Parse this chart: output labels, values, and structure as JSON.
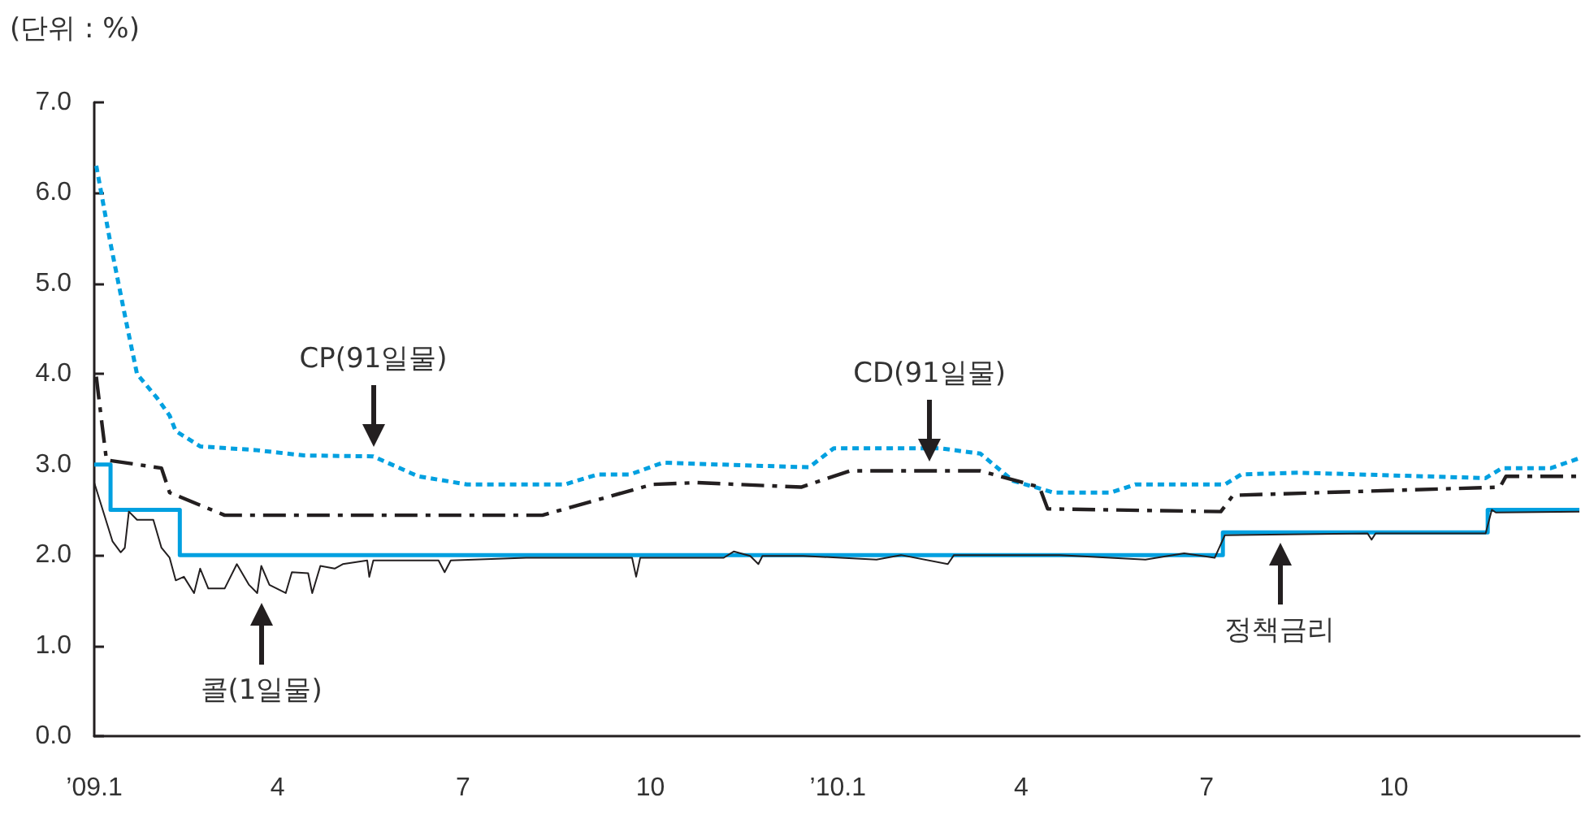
{
  "chart_data": {
    "type": "line",
    "ylabel": "(단위 : %)",
    "xlim": [
      "2009-01-01",
      "2010-12-31"
    ],
    "xticks": [
      {
        "value": "2009-01-01",
        "label": "’09.1"
      },
      {
        "value": "2009-04-01",
        "label": "4"
      },
      {
        "value": "2009-07-01",
        "label": "7"
      },
      {
        "value": "2009-10-01",
        "label": "10"
      },
      {
        "value": "2010-01-01",
        "label": "’10.1"
      },
      {
        "value": "2010-04-01",
        "label": "4"
      },
      {
        "value": "2010-07-01",
        "label": "7"
      },
      {
        "value": "2010-10-01",
        "label": "10"
      }
    ],
    "ylim": [
      0,
      7
    ],
    "yticks": [
      {
        "value": 0,
        "label": "0.0"
      },
      {
        "value": 1,
        "label": "1.0"
      },
      {
        "value": 2,
        "label": "2.0"
      },
      {
        "value": 3,
        "label": "3.0"
      },
      {
        "value": 4,
        "label": "4.0"
      },
      {
        "value": 5,
        "label": "5.0"
      },
      {
        "value": 6,
        "label": "6.0"
      },
      {
        "value": 7,
        "label": "7.0"
      }
    ],
    "grid": false,
    "marker": "none",
    "series": [
      {
        "color": "#00a0e0",
        "line_style": "dotted",
        "x": [
          "2009-01-02",
          "2009-01-09",
          "2009-01-17",
          "2009-01-22",
          "2009-02-01",
          "2009-02-07",
          "2009-02-10",
          "2009-02-22",
          "2009-03-21",
          "2009-04-14",
          "2009-05-18",
          "2009-06-09",
          "2009-07-03",
          "2009-08-20",
          "2009-09-05",
          "2009-09-21",
          "2009-10-07",
          "2009-12-02",
          "2009-12-18",
          "2009-12-30",
          "2010-02-20",
          "2010-03-12",
          "2010-03-28",
          "2010-04-17",
          "2010-05-15",
          "2010-05-27",
          "2010-07-10",
          "2010-07-18",
          "2010-08-15",
          "2010-11-15",
          "2010-11-23",
          "2010-12-17",
          "2010-12-31"
        ],
        "values": [
          6.3,
          5.44,
          4.54,
          4.0,
          3.73,
          3.54,
          3.37,
          3.2,
          3.16,
          3.1,
          3.09,
          2.87,
          2.78,
          2.78,
          2.89,
          2.89,
          3.02,
          2.98,
          2.97,
          3.18,
          3.18,
          3.12,
          2.82,
          2.69,
          2.69,
          2.78,
          2.78,
          2.89,
          2.91,
          2.85,
          2.96,
          2.96,
          3.07
        ]
      },
      {
        "color": "#231f20",
        "line_style": "dashed",
        "x": [
          "2009-01-02",
          "2009-01-05",
          "2009-01-07",
          "2009-02-03",
          "2009-02-07",
          "2009-03-06",
          "2009-08-09",
          "2009-10-02",
          "2009-10-24",
          "2009-12-14",
          "2010-01-07",
          "2010-03-12",
          "2010-04-10",
          "2010-04-14",
          "2010-07-08",
          "2010-07-14",
          "2010-11-22",
          "2010-11-25",
          "2010-12-31"
        ],
        "values": [
          3.97,
          3.41,
          3.05,
          2.96,
          2.69,
          2.44,
          2.44,
          2.78,
          2.8,
          2.75,
          2.93,
          2.93,
          2.75,
          2.51,
          2.48,
          2.66,
          2.75,
          2.87,
          2.87
        ]
      },
      {
        "color": "#231f20",
        "line_style": "solid",
        "x": [
          "2009-01-01",
          "2009-01-05",
          "2009-01-10",
          "2009-01-14",
          "2009-01-16",
          "2009-01-18",
          "2009-01-22",
          "2009-01-30",
          "2009-02-03",
          "2009-02-07",
          "2009-02-10",
          "2009-02-14",
          "2009-02-19",
          "2009-02-22",
          "2009-02-26",
          "2009-03-06",
          "2009-03-12",
          "2009-03-18",
          "2009-03-22",
          "2009-03-24",
          "2009-03-28",
          "2009-04-05",
          "2009-04-08",
          "2009-04-16",
          "2009-04-18",
          "2009-04-22",
          "2009-04-29",
          "2009-05-03",
          "2009-05-15",
          "2009-05-16",
          "2009-05-18",
          "2009-06-19",
          "2009-06-22",
          "2009-06-25",
          "2009-08-01",
          "2009-09-22",
          "2009-09-24",
          "2009-09-26",
          "2009-11-06",
          "2009-11-11",
          "2009-11-19",
          "2009-11-23",
          "2009-11-25",
          "2009-12-15",
          "2010-01-20",
          "2010-02-01",
          "2010-02-24",
          "2010-02-27",
          "2010-04-20",
          "2010-06-01",
          "2010-06-20",
          "2010-07-05",
          "2010-07-10",
          "2010-09-18",
          "2010-09-20",
          "2010-09-22",
          "2010-11-15",
          "2010-11-18",
          "2010-11-20",
          "2010-12-31"
        ],
        "values": [
          2.8,
          2.51,
          2.15,
          2.03,
          2.08,
          2.48,
          2.39,
          2.39,
          2.08,
          1.97,
          1.72,
          1.76,
          1.58,
          1.85,
          1.63,
          1.63,
          1.9,
          1.67,
          1.58,
          1.88,
          1.67,
          1.58,
          1.81,
          1.8,
          1.58,
          1.88,
          1.85,
          1.9,
          1.94,
          1.76,
          1.94,
          1.94,
          1.81,
          1.94,
          1.97,
          1.97,
          1.76,
          1.97,
          1.97,
          2.04,
          1.99,
          1.9,
          1.99,
          1.99,
          1.95,
          2.0,
          1.9,
          2.0,
          2.0,
          1.95,
          2.02,
          1.97,
          2.22,
          2.24,
          2.17,
          2.24,
          2.24,
          2.5,
          2.47,
          2.48
        ]
      },
      {
        "type": "step",
        "color": "#00a0e0",
        "line_style": "solid",
        "x": [
          "2009-01-01",
          "2009-01-09",
          "2009-02-12",
          "2010-07-09",
          "2010-11-16",
          "2010-12-31"
        ],
        "values": [
          3.0,
          2.5,
          2.0,
          2.25,
          2.5,
          2.5
        ]
      }
    ],
    "annotations": [
      {
        "text": "CP(91일물)",
        "x": "2009-05-18",
        "y": 3.09
      },
      {
        "text": "CD(91일물)",
        "x": "2010-02-15",
        "y": 2.93
      },
      {
        "text": "콜(1일물)",
        "x": "2009-03-24",
        "y": 1.58
      },
      {
        "text": "정책금리",
        "x": "2010-08-06",
        "y": 2.25
      }
    ]
  }
}
